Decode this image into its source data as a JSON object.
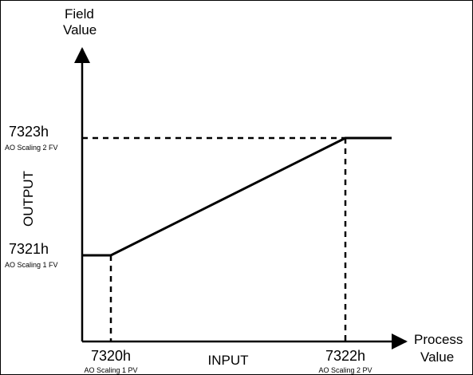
{
  "y_axis_title": [
    "Field",
    "Value"
  ],
  "x_axis_title": [
    "Process",
    "Value"
  ],
  "output_label": "OUTPUT",
  "input_label": "INPUT",
  "y_ticks": [
    {
      "code": "7323h",
      "sub": "AO Scaling 2 FV"
    },
    {
      "code": "7321h",
      "sub": "AO Scaling 1 FV"
    }
  ],
  "x_ticks": [
    {
      "code": "7320h",
      "sub": "AO Scaling 1 PV"
    },
    {
      "code": "7322h",
      "sub": "AO Scaling 2 PV"
    }
  ],
  "colors": {
    "line": "#000000",
    "background": "#ffffff"
  }
}
